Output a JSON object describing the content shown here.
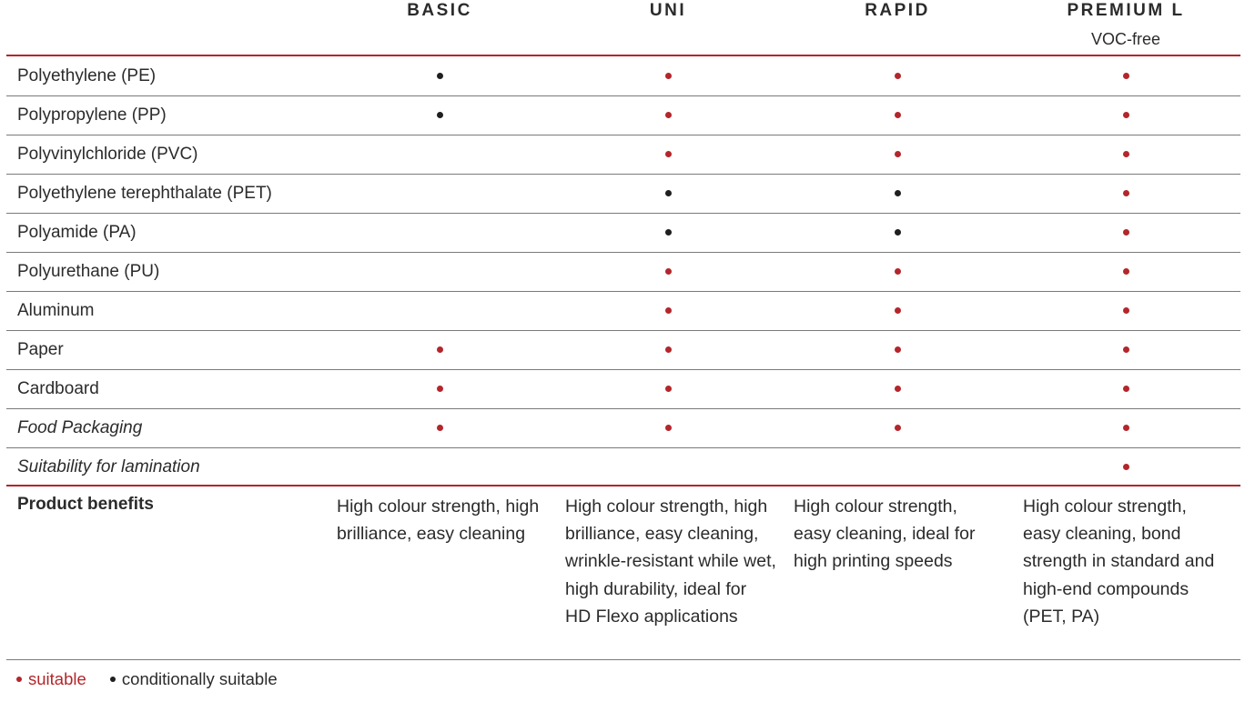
{
  "colors": {
    "suitable": "#b3262b",
    "conditionally_suitable": "#1f1f1f",
    "rule": "#b3262b"
  },
  "columns": [
    {
      "name": "BASIC",
      "sub": ""
    },
    {
      "name": "UNI",
      "sub": ""
    },
    {
      "name": "RAPID",
      "sub": ""
    },
    {
      "name": "PREMIUM L",
      "sub": "VOC-free"
    }
  ],
  "rows": [
    {
      "label": "Polyethylene (PE)",
      "italic": false,
      "marks": [
        "conditional",
        "suitable",
        "suitable",
        "suitable"
      ]
    },
    {
      "label": "Polypropylene (PP)",
      "italic": false,
      "marks": [
        "conditional",
        "suitable",
        "suitable",
        "suitable"
      ]
    },
    {
      "label": "Polyvinylchloride (PVC)",
      "italic": false,
      "marks": [
        "",
        "suitable",
        "suitable",
        "suitable"
      ]
    },
    {
      "label": "Polyethylene terephthalate (PET)",
      "italic": false,
      "marks": [
        "",
        "conditional",
        "conditional",
        "suitable"
      ]
    },
    {
      "label": "Polyamide (PA)",
      "italic": false,
      "marks": [
        "",
        "conditional",
        "conditional",
        "suitable"
      ]
    },
    {
      "label": "Polyurethane (PU)",
      "italic": false,
      "marks": [
        "",
        "suitable",
        "suitable",
        "suitable"
      ]
    },
    {
      "label": "Aluminum",
      "italic": false,
      "marks": [
        "",
        "suitable",
        "suitable",
        "suitable"
      ]
    },
    {
      "label": "Paper",
      "italic": false,
      "marks": [
        "suitable",
        "suitable",
        "suitable",
        "suitable"
      ]
    },
    {
      "label": "Cardboard",
      "italic": false,
      "marks": [
        "suitable",
        "suitable",
        "suitable",
        "suitable"
      ]
    },
    {
      "label": "Food Packaging",
      "italic": true,
      "marks": [
        "suitable",
        "suitable",
        "suitable",
        "suitable"
      ]
    },
    {
      "label": "Suitability for lamination",
      "italic": true,
      "marks": [
        "",
        "",
        "",
        "suitable"
      ]
    }
  ],
  "benefits": {
    "label": "Product benefits",
    "texts": [
      "High colour strength, high brilliance, easy cleaning",
      "High colour strength, high brilliance, easy cleaning, wrinkle-resistant while wet, high durability, ideal for HD Flexo applications",
      "High colour strength, easy cleaning, ideal for high printing speeds",
      "High colour strength, easy cleaning, bond strength in standard and high-end compounds (PET, PA)"
    ]
  },
  "legend": {
    "suitable": "suitable",
    "conditional": "conditionally suitable"
  }
}
